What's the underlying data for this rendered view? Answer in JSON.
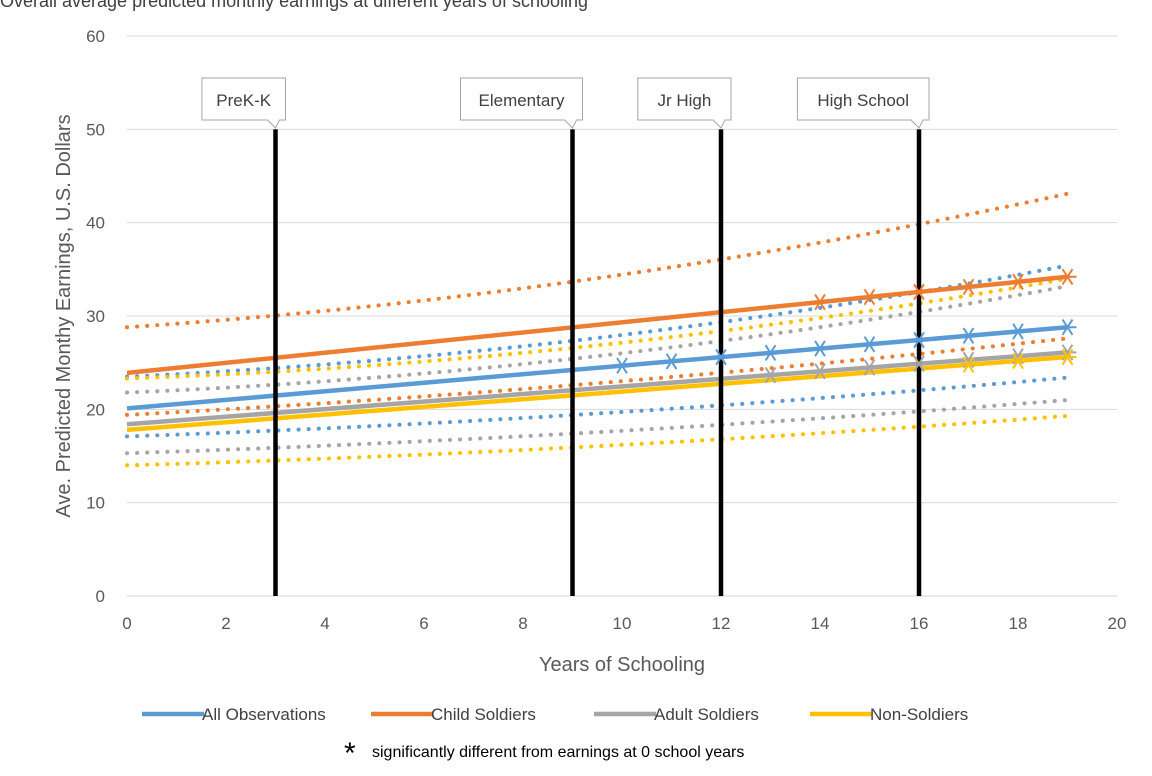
{
  "chart_data": {
    "type": "line",
    "title": "",
    "partial_title": "Overall average predicted monthly earnings at different years of schooling",
    "xlabel": "Years of Schooling",
    "ylabel": "Ave. Predicted Monthy Earnings, U.S. Dollars",
    "xlim": [
      0,
      20
    ],
    "ylim": [
      0,
      60
    ],
    "x_ticks": [
      "0",
      "2",
      "4",
      "6",
      "8",
      "10",
      "12",
      "14",
      "16",
      "18",
      "20"
    ],
    "y_ticks": [
      "0",
      "10",
      "20",
      "30",
      "40",
      "50",
      "60"
    ],
    "grid": "horizontal",
    "legend_position": "bottom",
    "footnote": {
      "marker": "*",
      "text": "significantly different from earnings at 0 school years"
    },
    "school_stages": [
      {
        "label": "PreK-K",
        "x": 3
      },
      {
        "label": "Elementary",
        "x": 9
      },
      {
        "label": "Jr High",
        "x": 12
      },
      {
        "label": "High School",
        "x": 16
      }
    ],
    "series": [
      {
        "name": "All Observations",
        "color": "#5B9BD5",
        "x0": 0,
        "x1": 19,
        "predicted": [
          20.1,
          28.8
        ],
        "ci_upper": [
          23.5,
          35.4
        ],
        "ci_lower": [
          17.1,
          23.4
        ],
        "ci_upper_curve": 1.8,
        "ci_lower_curve": 0.7,
        "significant_years": [
          10,
          11,
          12,
          13,
          14,
          15,
          16,
          17,
          18,
          19
        ]
      },
      {
        "name": "Child Soldiers",
        "color": "#ED7D31",
        "x0": 0,
        "x1": 19,
        "predicted": [
          23.9,
          34.2
        ],
        "ci_upper": [
          28.8,
          43.1
        ],
        "ci_lower": [
          19.4,
          27.6
        ],
        "ci_upper_curve": 1.9,
        "ci_lower_curve": 0.7,
        "significant_years": [
          14,
          15,
          16,
          17,
          18,
          19
        ]
      },
      {
        "name": "Adult Soldiers",
        "color": "#A5A5A5",
        "x0": 0,
        "x1": 19,
        "predicted": [
          18.4,
          26.1
        ],
        "ci_upper": [
          21.8,
          33.2
        ],
        "ci_lower": [
          15.3,
          21.0
        ],
        "ci_upper_curve": 1.8,
        "ci_lower_curve": 0.6,
        "significant_years": [
          13,
          14,
          15,
          16,
          17,
          18,
          19
        ]
      },
      {
        "name": "Non-Soldiers",
        "color": "#FFC000",
        "x0": 0,
        "x1": 19,
        "predicted": [
          17.8,
          25.6
        ],
        "ci_upper": [
          23.3,
          34.0
        ],
        "ci_lower": [
          14.0,
          19.3
        ],
        "ci_upper_curve": 1.8,
        "ci_lower_curve": 0.6,
        "significant_years": [
          17,
          18,
          19
        ]
      }
    ]
  }
}
